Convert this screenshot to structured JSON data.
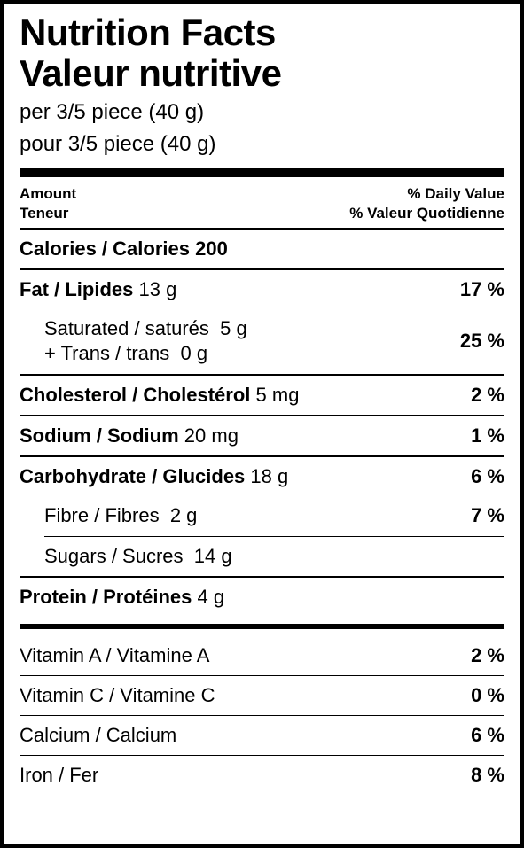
{
  "title_en": "Nutrition Facts",
  "title_fr": "Valeur nutritive",
  "serving_en": "per 3/5 piece (40 g)",
  "serving_fr": "pour 3/5 piece (40 g)",
  "header": {
    "amount_en": "Amount",
    "amount_fr": "Teneur",
    "dv_en": "% Daily Value",
    "dv_fr": "% Valeur Quotidienne"
  },
  "calories": {
    "label": "Calories / Calories",
    "value": "200"
  },
  "nutrients": {
    "fat": {
      "label": "Fat / Lipides",
      "value": "13 g",
      "dv": "17 %"
    },
    "saturated": {
      "label": "Saturated / saturés",
      "value": "5 g"
    },
    "trans": {
      "label": "+ Trans / trans",
      "value": "0 g"
    },
    "sat_trans_dv": "25 %",
    "cholesterol": {
      "label": "Cholesterol / Cholestérol",
      "value": "5 mg",
      "dv": "2 %"
    },
    "sodium": {
      "label": "Sodium / Sodium",
      "value": "20 mg",
      "dv": "1 %"
    },
    "carb": {
      "label": "Carbohydrate / Glucides",
      "value": "18 g",
      "dv": "6 %"
    },
    "fibre": {
      "label": "Fibre / Fibres",
      "value": "2 g",
      "dv": "7 %"
    },
    "sugars": {
      "label": "Sugars / Sucres",
      "value": "14 g"
    },
    "protein": {
      "label": "Protein / Protéines",
      "value": "4 g"
    }
  },
  "vitamins": {
    "vitA": {
      "label": "Vitamin A / Vitamine A",
      "dv": "2 %"
    },
    "vitC": {
      "label": "Vitamin C / Vitamine C",
      "dv": "0 %"
    },
    "calcium": {
      "label": "Calcium / Calcium",
      "dv": "6 %"
    },
    "iron": {
      "label": "Iron / Fer",
      "dv": "8 %"
    }
  }
}
